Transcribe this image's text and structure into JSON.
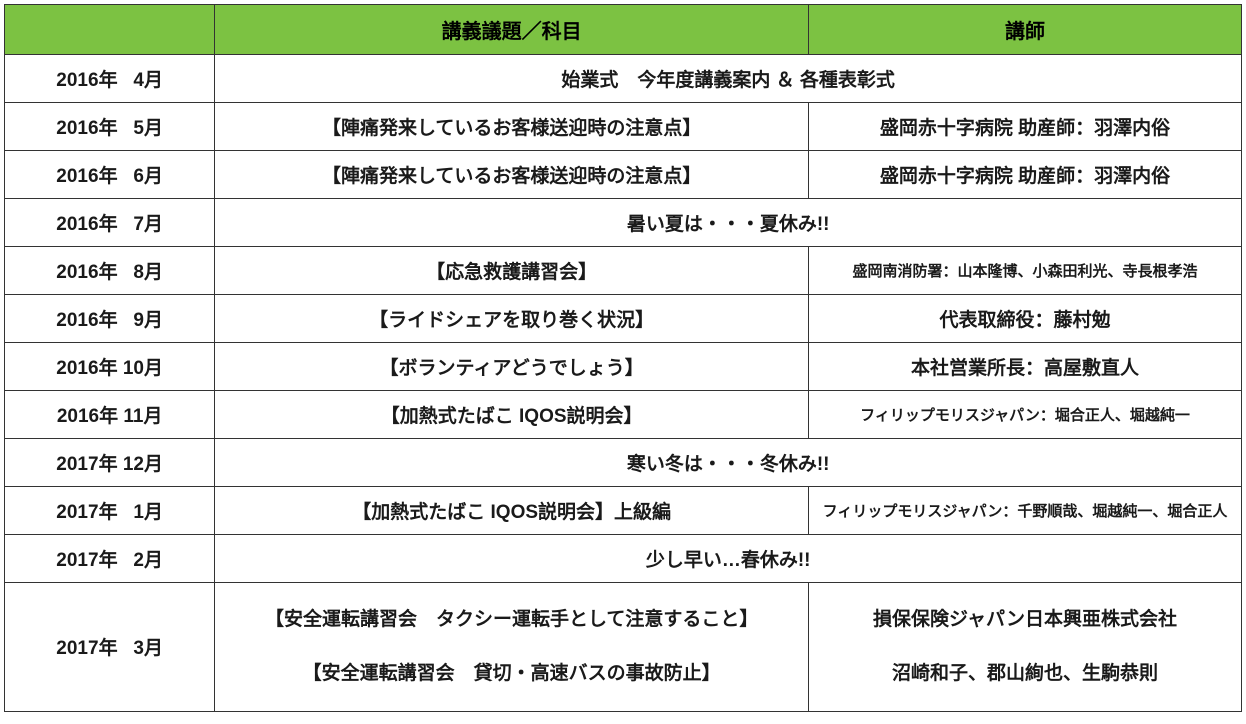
{
  "header": {
    "col_date": "",
    "col_topic": "講義議題／科目",
    "col_instructor": "講師",
    "bg_color": "#7cc242",
    "text_color": "#000000"
  },
  "rows": [
    {
      "date": "2016年   4月",
      "merged": true,
      "note": "始業式　今年度講義案内 ＆ 各種表彰式"
    },
    {
      "date": "2016年   5月",
      "topic": "【陣痛発来しているお客様送迎時の注意点】",
      "instructor": "盛岡赤十字病院 助産師：羽澤内俗"
    },
    {
      "date": "2016年   6月",
      "topic": "【陣痛発来しているお客様送迎時の注意点】",
      "instructor": "盛岡赤十字病院 助産師：羽澤内俗"
    },
    {
      "date": "2016年   7月",
      "merged": true,
      "note": "暑い夏は・・・夏休み!!"
    },
    {
      "date": "2016年   8月",
      "topic": "【応急救護講習会】",
      "instructor": "盛岡南消防署：山本隆博、小森田利光、寺長根孝浩",
      "instructor_small": true
    },
    {
      "date": "2016年   9月",
      "topic": "【ライドシェアを取り巻く状況】",
      "instructor": "代表取締役：藤村勉"
    },
    {
      "date": "2016年 10月",
      "topic": "【ボランティアどうでしょう】",
      "instructor": "本社営業所長：高屋敷直人"
    },
    {
      "date": "2016年 11月",
      "topic": "【加熱式たばこ IQOS説明会】",
      "instructor": "フィリップモリスジャパン：堀合正人、堀越純一",
      "instructor_small": true
    },
    {
      "date": "2017年 12月",
      "merged": true,
      "note": "寒い冬は・・・冬休み!!"
    },
    {
      "date": "2017年   1月",
      "topic": "【加熱式たばこ IQOS説明会】上級編",
      "instructor": "フィリップモリスジャパン：千野順哉、堀越純一、堀合正人",
      "instructor_small": true
    },
    {
      "date": "2017年   2月",
      "merged": true,
      "note": "少し早い…春休み!!"
    },
    {
      "date": "2017年   3月",
      "multi": true,
      "topics": [
        "【安全運転講習会　タクシー運転手として注意すること】",
        "【安全運転講習会　貸切・高速バスの事故防止】"
      ],
      "instructors": [
        "損保保険ジャパン日本興亜株式会社",
        "沼崎和子、郡山絢也、生駒恭則"
      ]
    }
  ],
  "style": {
    "border_color": "#333333",
    "bg_color": "#ffffff"
  }
}
